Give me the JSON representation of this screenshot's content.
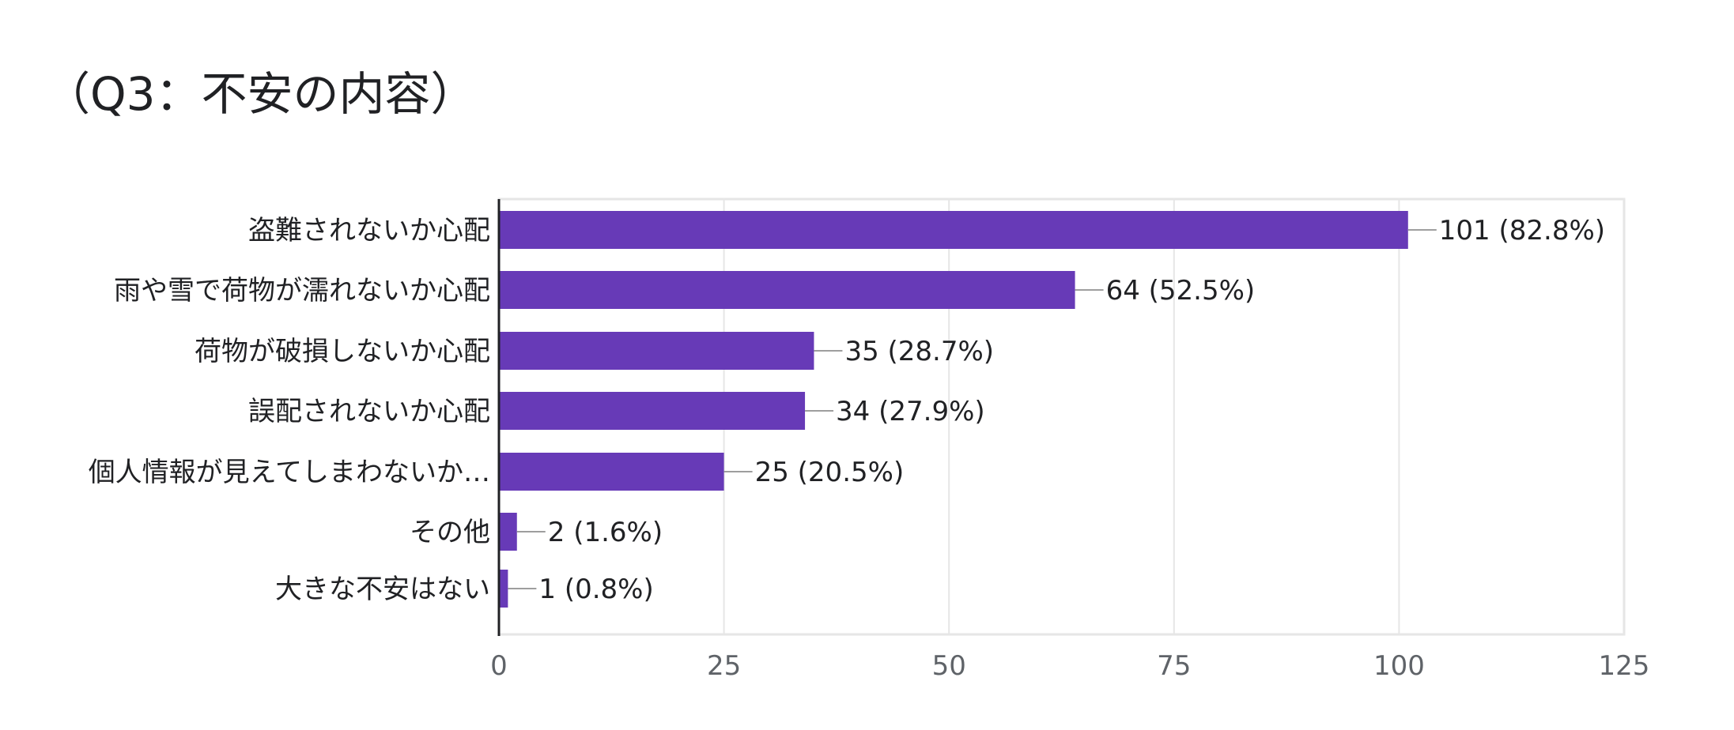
{
  "title": "（Q3：不安の内容）",
  "chart_data": {
    "type": "bar",
    "orientation": "horizontal",
    "title": "（Q3：不安の内容）",
    "categories": [
      "盗難されないか心配",
      "雨や雪で荷物が濡れないか心配",
      "荷物が破損しないか心配",
      "誤配されないか心配",
      "個人情報が見えてしまわないか…",
      "その他",
      "大きな不安はない"
    ],
    "values": [
      101,
      64,
      35,
      34,
      25,
      2,
      1
    ],
    "data_labels": [
      "101 (82.8%)",
      "64 (52.5%)",
      "35 (28.7%)",
      "34 (27.9%)",
      "25 (20.5%)",
      "2 (1.6%)",
      "1 (0.8%)"
    ],
    "xlim": [
      0,
      125
    ],
    "xticks": [
      "0",
      "25",
      "50",
      "75",
      "100",
      "125"
    ],
    "grid": true,
    "bar_color": "#673ab7",
    "grid_color": "#e6e6e6",
    "leader_color": "#9e9e9e",
    "text_color": "#202124",
    "tick_color": "#5f6368"
  }
}
